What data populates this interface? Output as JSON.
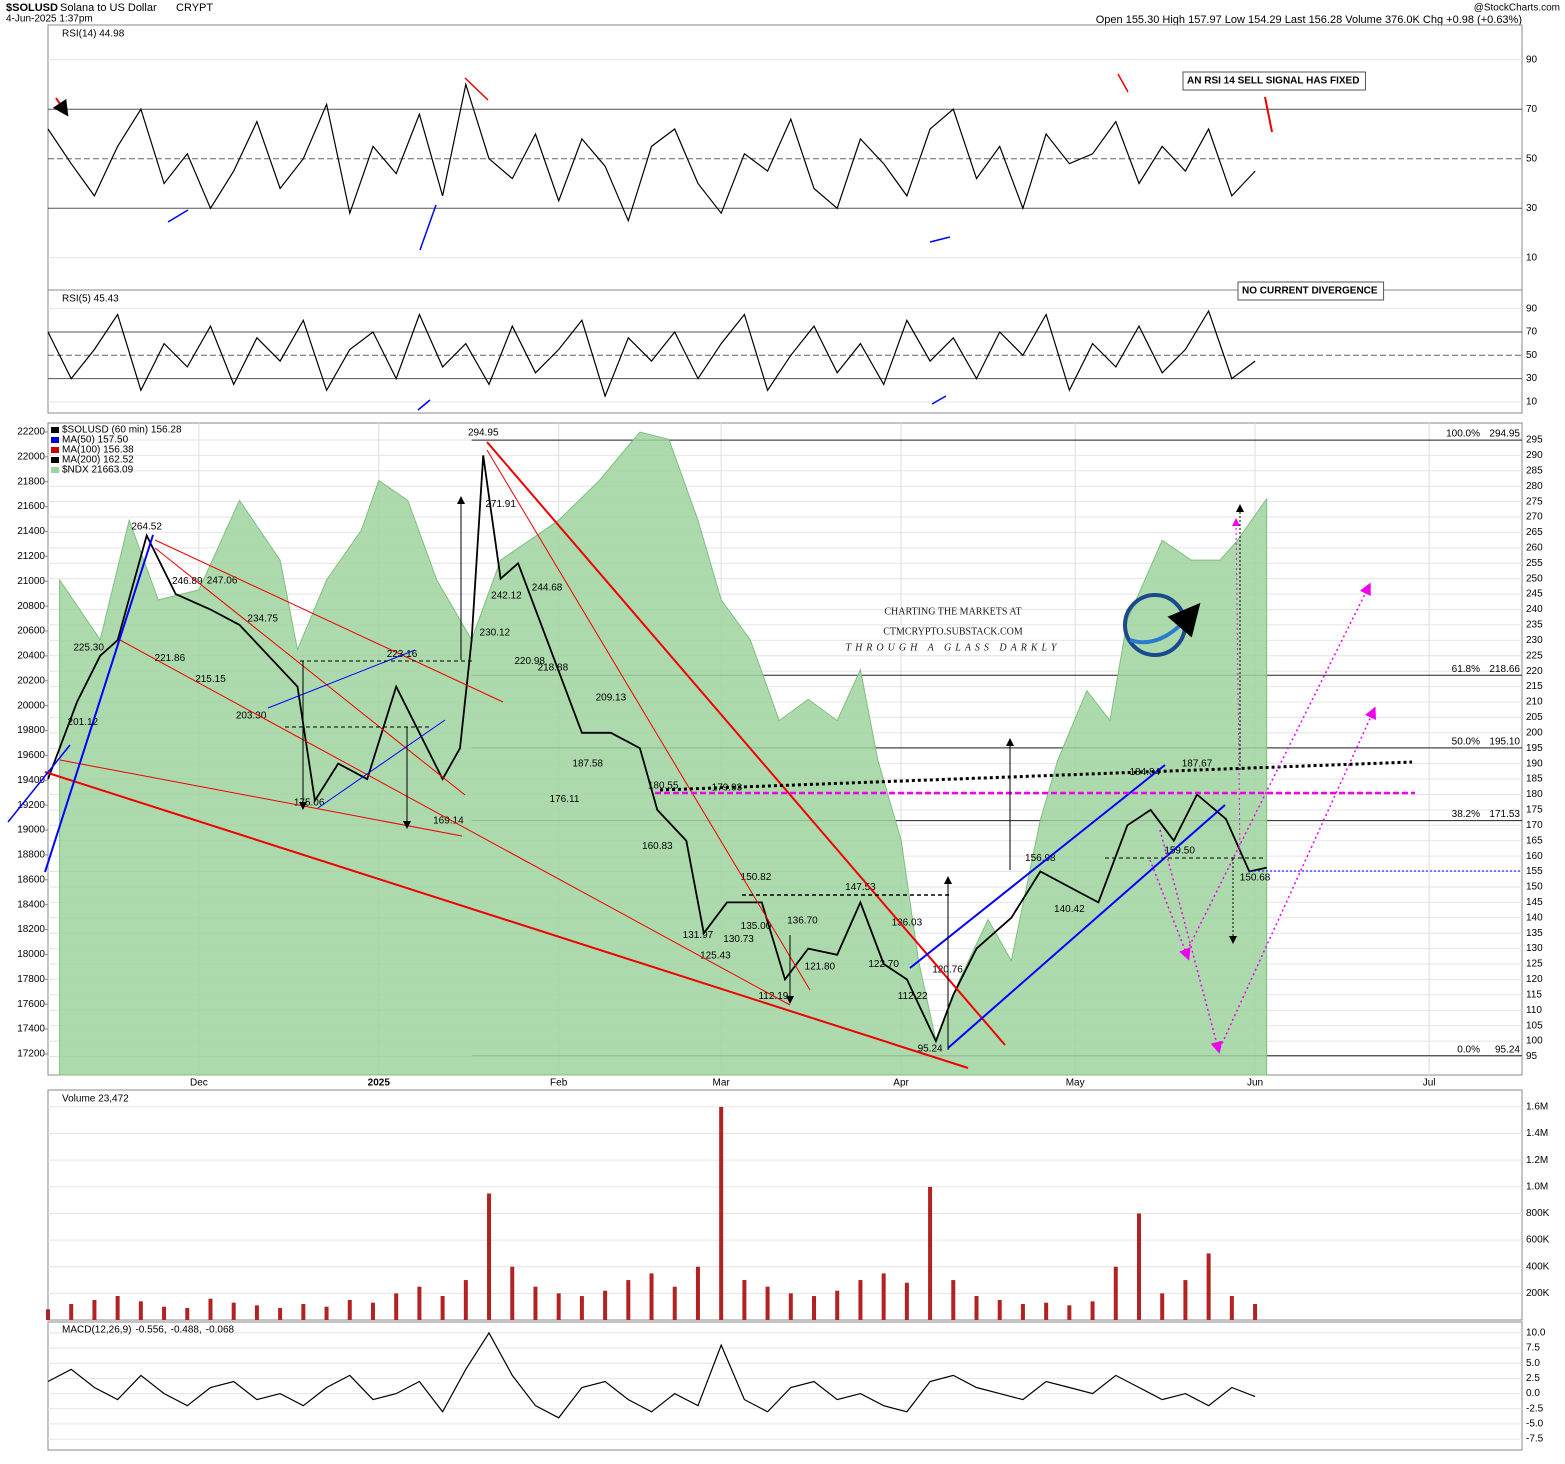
{
  "header": {
    "symbol": "$SOLUSD",
    "name": "Solana to US Dollar",
    "exchange": "CRYPT",
    "date": "4-Jun-2025 1:37pm",
    "quote": "Open 155.30 High 157.97 Low 154.29 Last 156.28 Volume 376.0K Chg +0.98 (+0.63%)",
    "source": "@StockCharts.com"
  },
  "watermark": {
    "line1": "CHARTING THE MARKETS AT",
    "line2": "CTMCRYPTO.SUBSTACK.COM",
    "line3": "THROUGH A GLASS DARKLY"
  },
  "chart_data": [
    {
      "type": "line",
      "title": "RSI(14) 44.98",
      "annotation": "AN RSI 14 SELL SIGNAL HAS FIXED",
      "xlim": [
        -26,
        228
      ],
      "ylim": [
        -3,
        104
      ],
      "yticks": [
        10,
        30,
        50,
        70,
        90
      ],
      "grid": true,
      "x": [
        -26,
        -22,
        -18,
        -14,
        -10,
        -6,
        -2,
        2,
        6,
        10,
        14,
        18,
        22,
        26,
        30,
        34,
        38,
        42,
        46,
        50,
        54,
        58,
        62,
        66,
        70,
        74,
        78,
        82,
        86,
        90,
        94,
        98,
        102,
        106,
        110,
        114,
        118,
        122,
        126,
        130,
        134,
        138,
        142,
        146,
        150,
        154,
        158,
        162,
        166,
        170,
        174,
        178,
        182
      ],
      "series": [
        {
          "name": "RSI(14)",
          "color": "#000000",
          "values": [
            62,
            48,
            35,
            55,
            70,
            40,
            52,
            30,
            45,
            65,
            38,
            50,
            72,
            28,
            55,
            44,
            68,
            35,
            80,
            50,
            42,
            60,
            33,
            58,
            47,
            25,
            55,
            62,
            40,
            28,
            52,
            45,
            66,
            38,
            30,
            58,
            48,
            35,
            62,
            70,
            42,
            55,
            30,
            60,
            48,
            52,
            65,
            40,
            55,
            45,
            62,
            35,
            45
          ]
        }
      ]
    },
    {
      "type": "line",
      "title": "RSI(5) 45.43",
      "annotation": "NO CURRENT DIVERGENCE",
      "xlim": [
        -26,
        228
      ],
      "ylim": [
        0.5,
        106
      ],
      "yticks": [
        10,
        30,
        50,
        70,
        90
      ],
      "grid": true,
      "x": [
        -26,
        -22,
        -18,
        -14,
        -10,
        -6,
        -2,
        2,
        6,
        10,
        14,
        18,
        22,
        26,
        30,
        34,
        38,
        42,
        46,
        50,
        54,
        58,
        62,
        66,
        70,
        74,
        78,
        82,
        86,
        90,
        94,
        98,
        102,
        106,
        110,
        114,
        118,
        122,
        126,
        130,
        134,
        138,
        142,
        146,
        150,
        154,
        158,
        162,
        166,
        170,
        174,
        178,
        182
      ],
      "series": [
        {
          "name": "RSI(5)",
          "color": "#000000",
          "values": [
            70,
            30,
            55,
            85,
            20,
            60,
            40,
            75,
            25,
            65,
            45,
            80,
            20,
            55,
            70,
            30,
            85,
            40,
            60,
            25,
            75,
            35,
            55,
            80,
            15,
            65,
            45,
            70,
            30,
            60,
            85,
            20,
            50,
            75,
            35,
            60,
            25,
            80,
            45,
            65,
            30,
            70,
            50,
            85,
            20,
            60,
            40,
            75,
            35,
            55,
            88,
            30,
            45
          ]
        }
      ]
    },
    {
      "type": "line",
      "xlim": [
        -26,
        228
      ],
      "ylim": [
        89,
        300.5
      ],
      "yticks": [
        95,
        100,
        105,
        110,
        115,
        120,
        125,
        130,
        135,
        140,
        145,
        150,
        155,
        160,
        165,
        170,
        175,
        180,
        185,
        190,
        195,
        200,
        205,
        210,
        215,
        220,
        225,
        230,
        235,
        240,
        245,
        250,
        255,
        260,
        265,
        270,
        275,
        280,
        285,
        290,
        295
      ],
      "y2lim": [
        17031,
        22272
      ],
      "y2ticks": [
        17200,
        17400,
        17600,
        17800,
        18000,
        18200,
        18400,
        18600,
        18800,
        19000,
        19200,
        19400,
        19600,
        19800,
        20000,
        20200,
        20400,
        20600,
        20800,
        21000,
        21200,
        21400,
        21600,
        21800,
        22000,
        22200
      ],
      "xticks": [
        {
          "value": 0,
          "label": "Dec"
        },
        {
          "value": 31,
          "label": "2025"
        },
        {
          "value": 62,
          "label": "Feb"
        },
        {
          "value": 90,
          "label": "Mar"
        },
        {
          "value": 121,
          "label": "Apr"
        },
        {
          "value": 151,
          "label": "May"
        },
        {
          "value": 182,
          "label": "Jun"
        },
        {
          "value": 212,
          "label": "Jul"
        }
      ],
      "grid": true,
      "series": [
        {
          "name": "$SOLUSD (60 min) 156.28",
          "color": "#000000",
          "x": [
            -26,
            -23,
            -21,
            -17,
            -14,
            -9,
            -4,
            2,
            7,
            12,
            17,
            20,
            24,
            29,
            34,
            38,
            42,
            45,
            47,
            49,
            52,
            55,
            59,
            63,
            66,
            71,
            76,
            79,
            84,
            87,
            91,
            97,
            101,
            105,
            110,
            114,
            118,
            122,
            127,
            130,
            134,
            140,
            145,
            150,
            155,
            160,
            164,
            168,
            172,
            177,
            181,
            184
          ],
          "values": [
            185,
            200,
            210,
            225,
            230,
            264,
            245,
            240,
            235,
            225,
            215,
            178,
            190,
            185,
            215,
            200,
            185,
            195,
            230,
            290,
            250,
            255,
            235,
            215,
            200,
            200,
            195,
            175,
            165,
            135,
            145,
            145,
            120,
            130,
            128,
            145,
            125,
            120,
            100,
            115,
            130,
            140,
            155,
            150,
            145,
            170,
            175,
            165,
            180,
            172,
            155,
            156.28
          ]
        },
        {
          "name": "$NDX 21663.09",
          "color": "#9fd39f",
          "axis": "y2",
          "area": true,
          "x": [
            -24,
            -17,
            -12,
            -7,
            0,
            7,
            14,
            17,
            22,
            28,
            31,
            36,
            41,
            47,
            52,
            57,
            62,
            69,
            76,
            81,
            86,
            90,
            95,
            100,
            105,
            110,
            114,
            117,
            121,
            124,
            127,
            131,
            136,
            140,
            145,
            148,
            153,
            157,
            160,
            166,
            171,
            176,
            179,
            184
          ],
          "values": [
            21010,
            20530,
            21490,
            20850,
            20930,
            21650,
            21170,
            20450,
            21010,
            21410,
            21810,
            21650,
            21010,
            20530,
            21170,
            21330,
            21490,
            21810,
            22200,
            22140,
            21490,
            20850,
            20530,
            19880,
            20050,
            19880,
            20290,
            19560,
            18920,
            17950,
            17310,
            17790,
            18280,
            17950,
            19080,
            19560,
            20120,
            19880,
            20690,
            21330,
            21170,
            21170,
            21330,
            21663.09
          ]
        }
      ],
      "legend": [
        {
          "text": "MA(50) 157.50",
          "color": "#0000cc"
        },
        {
          "text": "MA(100) 156.38",
          "color": "#cc0000"
        },
        {
          "text": "MA(200) 162.52",
          "color": "#000000"
        }
      ],
      "fib_levels": [
        {
          "label": "100.0%",
          "value": 294.95,
          "value_label": "294.95"
        },
        {
          "label": "61.8%",
          "value": 218.66,
          "value_label": "218.66"
        },
        {
          "label": "50.0%",
          "value": 195.1,
          "value_label": "195.10"
        },
        {
          "label": "38.2%",
          "value": 171.53,
          "value_label": "171.53"
        },
        {
          "label": "0.0%",
          "value": 95.24,
          "value_label": "95.24"
        }
      ],
      "price_labels": [
        {
          "x": -9,
          "value": 264.52,
          "label": "264.52"
        },
        {
          "x": -19,
          "value": 225.3,
          "label": "225.30"
        },
        {
          "x": -20,
          "value": 201.12,
          "label": "201.12"
        },
        {
          "x": -2,
          "value": 246.89,
          "label": "246.89"
        },
        {
          "x": 4,
          "value": 247.06,
          "label": "247.06"
        },
        {
          "x": -5,
          "value": 221.86,
          "label": "221.86"
        },
        {
          "x": 2,
          "value": 215.15,
          "label": "215.15"
        },
        {
          "x": 11,
          "value": 234.75,
          "label": "234.75"
        },
        {
          "x": 9,
          "value": 203.3,
          "label": "203.30"
        },
        {
          "x": 19,
          "value": 175.06,
          "label": "175.06"
        },
        {
          "x": 35,
          "value": 223.16,
          "label": "223.16"
        },
        {
          "x": 43,
          "value": 169.14,
          "label": "169.14"
        },
        {
          "x": 49,
          "value": 294.95,
          "label": "294.95"
        },
        {
          "x": 52,
          "value": 271.91,
          "label": "271.91"
        },
        {
          "x": 51,
          "value": 230.12,
          "label": "230.12"
        },
        {
          "x": 53,
          "value": 242.12,
          "label": "242.12"
        },
        {
          "x": 60,
          "value": 244.68,
          "label": "244.68"
        },
        {
          "x": 57,
          "value": 220.98,
          "label": "220.98"
        },
        {
          "x": 61,
          "value": 218.88,
          "label": "218.88"
        },
        {
          "x": 71,
          "value": 209.13,
          "label": "209.13"
        },
        {
          "x": 67,
          "value": 187.58,
          "label": "187.58"
        },
        {
          "x": 63,
          "value": 176.11,
          "label": "176.11"
        },
        {
          "x": 80,
          "value": 180.55,
          "label": "180.55"
        },
        {
          "x": 91,
          "value": 179.93,
          "label": "179.93"
        },
        {
          "x": 79,
          "value": 160.83,
          "label": "160.83"
        },
        {
          "x": 96,
          "value": 150.82,
          "label": "150.82"
        },
        {
          "x": 86,
          "value": 131.97,
          "label": "131.97"
        },
        {
          "x": 89,
          "value": 125.43,
          "label": "125.43"
        },
        {
          "x": 93,
          "value": 130.73,
          "label": "130.73"
        },
        {
          "x": 96,
          "value": 135,
          "label": "135.00"
        },
        {
          "x": 104,
          "value": 136.7,
          "label": "136.70"
        },
        {
          "x": 107,
          "value": 121.8,
          "label": "121.80"
        },
        {
          "x": 99,
          "value": 112.19,
          "label": "112.19"
        },
        {
          "x": 114,
          "value": 147.53,
          "label": "147.53"
        },
        {
          "x": 122,
          "value": 136.03,
          "label": "136.03"
        },
        {
          "x": 118,
          "value": 122.7,
          "label": "122.70"
        },
        {
          "x": 123,
          "value": 112.22,
          "label": "112.22"
        },
        {
          "x": 129,
          "value": 120.76,
          "label": "120.76"
        },
        {
          "x": 126,
          "value": 95.24,
          "label": "95.24"
        },
        {
          "x": 145,
          "value": 156.98,
          "label": "156.98"
        },
        {
          "x": 150,
          "value": 140.42,
          "label": "140.42"
        },
        {
          "x": 163,
          "value": 184.84,
          "label": "184.84"
        },
        {
          "x": 172,
          "value": 187.67,
          "label": "187.67"
        },
        {
          "x": 169,
          "value": 159.5,
          "label": "159.50"
        },
        {
          "x": 182,
          "value": 150.68,
          "label": "150.68"
        }
      ]
    },
    {
      "type": "bar",
      "title": "Volume 23,472",
      "color": "#b22222",
      "xlim": [
        -26,
        228
      ],
      "ylim": [
        0,
        1727000
      ],
      "yticks": [
        {
          "value": 200000,
          "label": "200K"
        },
        {
          "value": 400000,
          "label": "400K"
        },
        {
          "value": 600000,
          "label": "600K"
        },
        {
          "value": 800000,
          "label": "800K"
        },
        {
          "value": 1000000,
          "label": "1.0M"
        },
        {
          "value": 1200000,
          "label": "1.2M"
        },
        {
          "value": 1400000,
          "label": "1.4M"
        },
        {
          "value": 1600000,
          "label": "1.6M"
        }
      ],
      "grid": true,
      "x": [
        -26,
        -22,
        -18,
        -14,
        -10,
        -6,
        -2,
        2,
        6,
        10,
        14,
        18,
        22,
        26,
        30,
        34,
        38,
        42,
        46,
        50,
        54,
        58,
        62,
        66,
        70,
        74,
        78,
        82,
        86,
        90,
        94,
        98,
        102,
        106,
        110,
        114,
        118,
        122,
        126,
        130,
        134,
        138,
        142,
        146,
        150,
        154,
        158,
        162,
        166,
        170,
        174,
        178,
        182
      ],
      "values": [
        80000,
        120000,
        150000,
        180000,
        140000,
        100000,
        90000,
        160000,
        130000,
        110000,
        90000,
        120000,
        100000,
        150000,
        130000,
        200000,
        250000,
        180000,
        300000,
        950000,
        400000,
        250000,
        200000,
        180000,
        220000,
        300000,
        350000,
        250000,
        400000,
        1600000,
        300000,
        250000,
        200000,
        180000,
        220000,
        300000,
        350000,
        280000,
        1000000,
        300000,
        180000,
        150000,
        120000,
        130000,
        110000,
        140000,
        400000,
        800000,
        200000,
        300000,
        500000,
        180000,
        120000
      ]
    },
    {
      "type": "line",
      "title_parts": [
        {
          "text": "MACD(12,26,9)",
          "color": "#000000"
        },
        {
          "text": "-0.556,",
          "color": "#000000"
        },
        {
          "text": "-0.488,",
          "color": "#cc0000"
        },
        {
          "text": "-0.068",
          "color": "#0000cc"
        }
      ],
      "xlim": [
        -26,
        228
      ],
      "ylim": [
        -9.3,
        11.8
      ],
      "yticks": [
        {
          "value": 10,
          "label": "10.0"
        },
        7.5,
        {
          "value": 5,
          "label": "5.0"
        },
        2.5,
        {
          "value": 0,
          "label": "0.0"
        },
        -2.5,
        {
          "value": -5,
          "label": "-5.0"
        },
        -7.5
      ],
      "grid": true,
      "x": [
        -26,
        -22,
        -18,
        -14,
        -10,
        -6,
        -2,
        2,
        6,
        10,
        14,
        18,
        22,
        26,
        30,
        34,
        38,
        42,
        46,
        50,
        54,
        58,
        62,
        66,
        70,
        74,
        78,
        82,
        86,
        90,
        94,
        98,
        102,
        106,
        110,
        114,
        118,
        122,
        126,
        130,
        134,
        138,
        142,
        146,
        150,
        154,
        158,
        162,
        166,
        170,
        174,
        178,
        182
      ],
      "series": [
        {
          "name": "MACD",
          "color": "#000000",
          "values": [
            2,
            4,
            1,
            -1,
            3,
            0,
            -2,
            1,
            2,
            -1,
            0,
            -2,
            1,
            3,
            -1,
            0,
            2,
            -3,
            4,
            10,
            3,
            -2,
            -4,
            1,
            2,
            -1,
            -3,
            0,
            -2,
            8,
            -1,
            -3,
            1,
            2,
            -1,
            0,
            -2,
            -3,
            2,
            3,
            1,
            0,
            -1,
            2,
            1,
            0,
            3,
            1,
            -1,
            0,
            -2,
            1,
            -0.5
          ]
        }
      ]
    }
  ]
}
